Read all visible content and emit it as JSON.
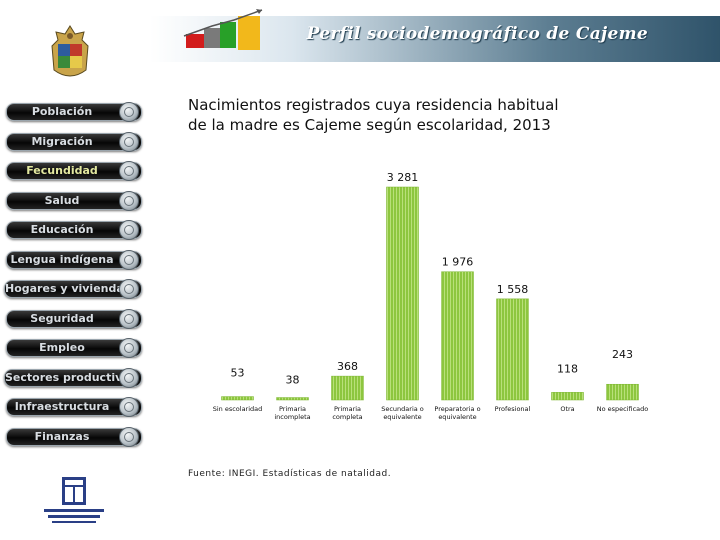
{
  "header": {
    "title": "Perfil sociodemográfico de Cajeme"
  },
  "nav": {
    "items": [
      {
        "label": "Población",
        "active": false
      },
      {
        "label": "Migración",
        "active": false
      },
      {
        "label": "Fecundidad",
        "active": true
      },
      {
        "label": "Salud",
        "active": false
      },
      {
        "label": "Educación",
        "active": false
      },
      {
        "label": "Lengua indígena",
        "active": false
      },
      {
        "label": "Hogares y vivienda",
        "active": false
      },
      {
        "label": "Seguridad",
        "active": false
      },
      {
        "label": "Empleo",
        "active": false
      },
      {
        "label": "Sectores productivos",
        "active": false
      },
      {
        "label": "Infraestructura",
        "active": false
      },
      {
        "label": "Finanzas",
        "active": false
      }
    ]
  },
  "source": "Fuente: INEGI. Estadísticas de natalidad.",
  "chart_data": {
    "type": "bar",
    "title_lines": [
      "Nacimientos registrados cuya residencia habitual",
      "de la madre es Cajeme según escolaridad, 2013"
    ],
    "categories": [
      [
        "Sin escolaridad"
      ],
      [
        "Primaria",
        "incompleta"
      ],
      [
        "Primaria",
        "completa"
      ],
      [
        "Secundaria o",
        "equivalente"
      ],
      [
        "Preparatoria o",
        "equivalente"
      ],
      [
        "Profesional"
      ],
      [
        "Otra"
      ],
      [
        "No especificado"
      ]
    ],
    "values": [
      53,
      38,
      368,
      3281,
      1976,
      1558,
      118,
      243
    ],
    "labels": [
      "53",
      "38",
      "368",
      "3 281",
      "1 976",
      "1 558",
      "118",
      "243"
    ],
    "xlabel": "",
    "ylabel": "",
    "bar_color": "#8dc63f",
    "grid": false,
    "legend": false
  }
}
